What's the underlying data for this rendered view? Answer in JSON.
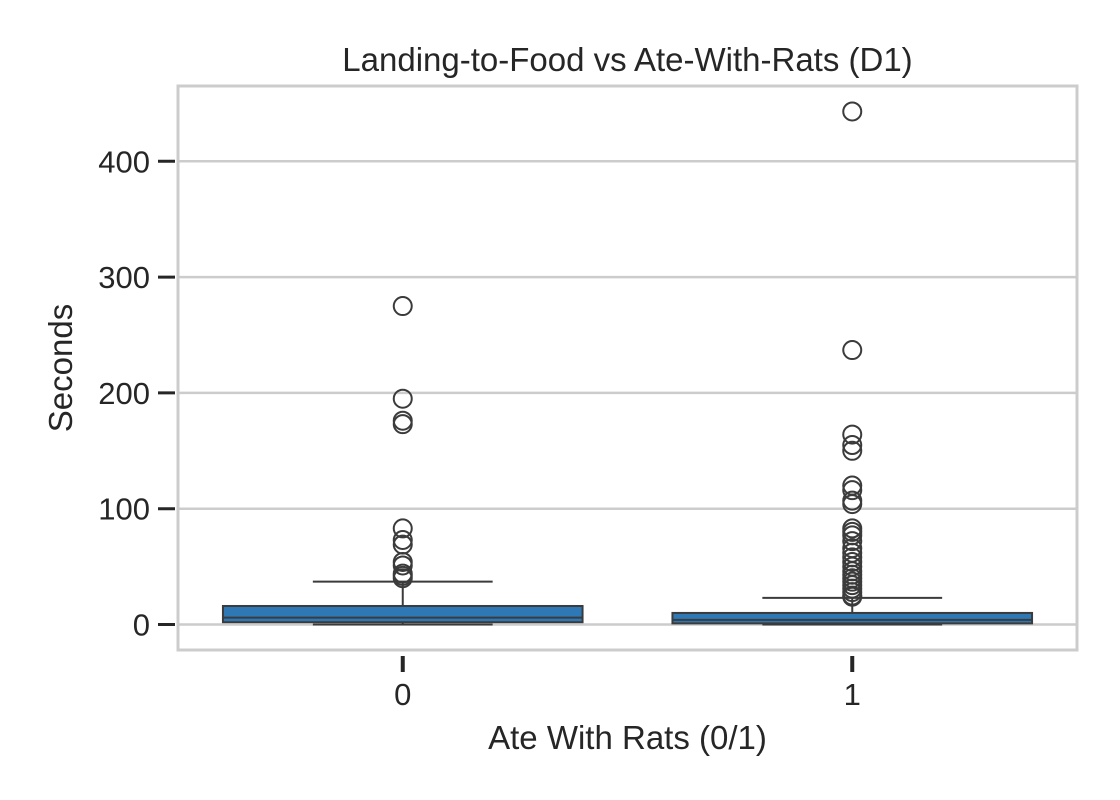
{
  "chart_data": {
    "type": "box",
    "title": "Landing-to-Food vs Ate-With-Rats (D1)",
    "xlabel": "Ate With Rats (0/1)",
    "ylabel": "Seconds",
    "categories": [
      "0",
      "1"
    ],
    "ylim": [
      -22,
      465
    ],
    "yticks": [
      0,
      100,
      200,
      300,
      400
    ],
    "grid": true,
    "boxes": [
      {
        "category": "0",
        "min": 0,
        "q1": 2,
        "median": 6,
        "q3": 16,
        "whisker_high": 37,
        "outliers": [
          275,
          195,
          176,
          173,
          83,
          73,
          69,
          54,
          51,
          44,
          42,
          40
        ]
      },
      {
        "category": "1",
        "min": 0,
        "q1": 1,
        "median": 4,
        "q3": 10,
        "whisker_high": 23,
        "outliers": [
          443,
          237,
          164,
          155,
          150,
          120,
          116,
          107,
          104,
          83,
          80,
          77,
          72,
          66,
          62,
          58,
          54,
          50,
          46,
          43,
          40,
          37,
          34,
          31,
          28,
          25,
          24
        ]
      }
    ],
    "colors": {
      "box_fill": "#2e79b5",
      "line": "#3b3b3b",
      "grid": "#cccccc",
      "frame": "#cccccc",
      "text": "#262626"
    }
  }
}
